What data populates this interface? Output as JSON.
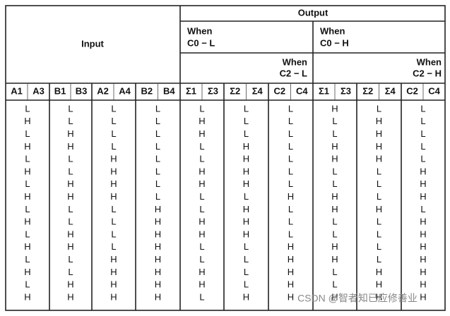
{
  "output_header": "Output",
  "input_header": "Input",
  "when_c0_low": [
    "When",
    "C0 − L"
  ],
  "when_c0_high": [
    "When",
    "C0 − H"
  ],
  "when_c2_low": [
    "When",
    "C2 − L"
  ],
  "when_c2_high": [
    "When",
    "C2 − H"
  ],
  "columns": [
    [
      "A1",
      "A3"
    ],
    [
      "B1",
      "B3"
    ],
    [
      "A2",
      "A4"
    ],
    [
      "B2",
      "B4"
    ],
    [
      "Σ1",
      "Σ3"
    ],
    [
      "Σ2",
      "Σ4"
    ],
    [
      "C2",
      "C4"
    ],
    [
      "Σ1",
      "Σ3"
    ],
    [
      "Σ2",
      "Σ4"
    ],
    [
      "C2",
      "C4"
    ]
  ],
  "rows": [
    [
      "L",
      "L",
      "L",
      "L",
      "L",
      "L",
      "L",
      "H",
      "L",
      "L"
    ],
    [
      "H",
      "L",
      "L",
      "L",
      "H",
      "L",
      "L",
      "L",
      "H",
      "L"
    ],
    [
      "L",
      "H",
      "L",
      "L",
      "H",
      "L",
      "L",
      "L",
      "H",
      "L"
    ],
    [
      "H",
      "H",
      "L",
      "L",
      "L",
      "H",
      "L",
      "H",
      "H",
      "L"
    ],
    [
      "L",
      "L",
      "H",
      "L",
      "L",
      "H",
      "L",
      "H",
      "H",
      "L"
    ],
    [
      "H",
      "L",
      "H",
      "L",
      "H",
      "H",
      "L",
      "L",
      "L",
      "H"
    ],
    [
      "L",
      "H",
      "H",
      "L",
      "H",
      "H",
      "L",
      "L",
      "L",
      "H"
    ],
    [
      "H",
      "H",
      "H",
      "L",
      "L",
      "L",
      "H",
      "H",
      "L",
      "H"
    ],
    [
      "L",
      "L",
      "L",
      "H",
      "L",
      "H",
      "L",
      "H",
      "H",
      "L"
    ],
    [
      "H",
      "L",
      "L",
      "H",
      "H",
      "H",
      "L",
      "L",
      "L",
      "H"
    ],
    [
      "L",
      "H",
      "L",
      "H",
      "H",
      "H",
      "L",
      "L",
      "L",
      "H"
    ],
    [
      "H",
      "H",
      "L",
      "H",
      "L",
      "L",
      "H",
      "H",
      "L",
      "H"
    ],
    [
      "L",
      "L",
      "H",
      "H",
      "L",
      "L",
      "H",
      "H",
      "L",
      "H"
    ],
    [
      "H",
      "L",
      "H",
      "H",
      "H",
      "L",
      "H",
      "L",
      "H",
      "H"
    ],
    [
      "L",
      "H",
      "H",
      "H",
      "H",
      "L",
      "H",
      "L",
      "H",
      "H"
    ],
    [
      "H",
      "H",
      "H",
      "H",
      "L",
      "H",
      "H",
      "H",
      "H",
      "H"
    ]
  ],
  "watermark": "CSDN @智者知已应修善业"
}
